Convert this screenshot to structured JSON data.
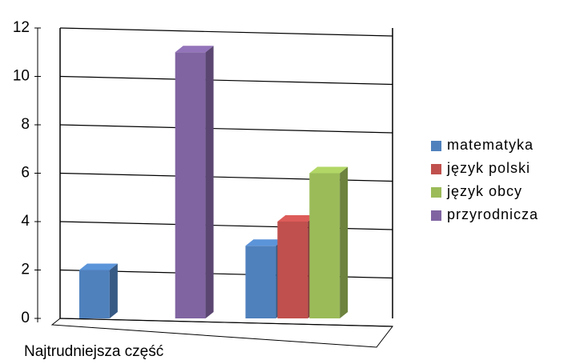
{
  "chart_data": {
    "type": "bar3d",
    "categories": [
      "Najtrudniejsza część",
      null
    ],
    "series": [
      {
        "name": "matematyka",
        "color": "#4f81bd",
        "values": [
          2,
          3
        ]
      },
      {
        "name": "język polski",
        "color": "#c0504d",
        "values": [
          0,
          4
        ]
      },
      {
        "name": "język obcy",
        "color": "#9bbb59",
        "values": [
          0,
          6
        ]
      },
      {
        "name": "przyrodnicza",
        "color": "#8064a2",
        "values": [
          11,
          0
        ]
      }
    ],
    "ylim": [
      0,
      12
    ],
    "yticks": [
      0,
      2,
      4,
      6,
      8,
      10,
      12
    ],
    "grid": true,
    "legend": "right"
  }
}
